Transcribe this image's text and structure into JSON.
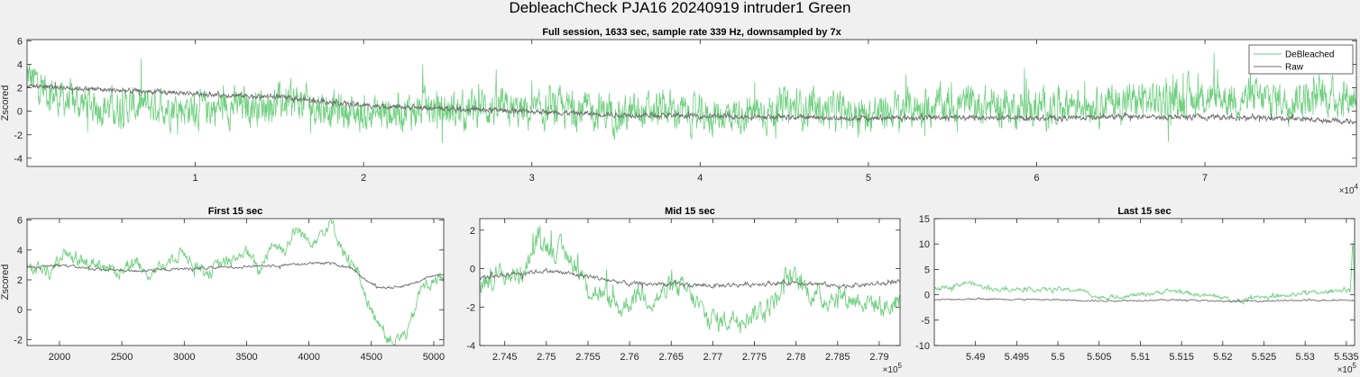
{
  "figure_title": "DebleachCheck PJA16 20240919  intruder1 Green",
  "colors": {
    "debleached": "#6fcf7f",
    "raw": "#6f6f6f",
    "axes_bg": "#ffffff",
    "figure_bg": "#f0f0f0"
  },
  "chart_data": [
    {
      "type": "line",
      "title": "Full session, 1633 sec, sample rate 339 Hz, downsampled by 7x",
      "ylabel": "Zscored",
      "xlabel": "",
      "xlim": [
        0,
        79000
      ],
      "ylim": [
        -4.7,
        6.1
      ],
      "xticks": [
        10000,
        20000,
        30000,
        40000,
        50000,
        60000,
        70000
      ],
      "xtick_labels": [
        "1",
        "2",
        "3",
        "4",
        "5",
        "6",
        "7"
      ],
      "xexponent": "×10",
      "xexponent_power": "4",
      "yticks": [
        -4,
        -2,
        0,
        2,
        4,
        6
      ],
      "ytick_labels": [
        "-4",
        "-2",
        "0",
        "2",
        "4",
        "6"
      ],
      "legend": {
        "placement": "top-right",
        "entries": [
          "DeBleached",
          "Raw"
        ]
      },
      "series": [
        {
          "name": "DeBleached",
          "x": [
            0,
            2000,
            5000,
            8000,
            10000,
            13000,
            16000,
            19000,
            20000,
            22000,
            24000,
            26000,
            27000,
            28000,
            30000,
            32000,
            34000,
            36000,
            38000,
            40000,
            42000,
            44000,
            46000,
            48000,
            50000,
            52000,
            54000,
            56000,
            58000,
            60000,
            62000,
            64000,
            66000,
            68000,
            70000,
            72000,
            74000,
            76000,
            79000
          ],
          "y": [
            3.0,
            1.0,
            0.3,
            0.5,
            0.2,
            0.5,
            0.8,
            0.0,
            -0.3,
            0.0,
            0.2,
            0.0,
            0.5,
            0.1,
            -0.2,
            0.2,
            0.0,
            -0.3,
            0.2,
            -0.5,
            -0.2,
            0.0,
            0.3,
            0.0,
            -0.3,
            0.2,
            0.5,
            0.6,
            0.4,
            0.2,
            0.8,
            0.7,
            0.9,
            1.0,
            1.2,
            1.1,
            1.0,
            1.2,
            1.2
          ],
          "noise": 1.5
        },
        {
          "name": "Raw",
          "x": [
            0,
            5000,
            10000,
            15000,
            20000,
            25000,
            30000,
            35000,
            40000,
            45000,
            50000,
            55000,
            60000,
            65000,
            70000,
            75000,
            79000
          ],
          "y": [
            2.2,
            1.8,
            1.5,
            1.2,
            0.5,
            0.2,
            0.0,
            -0.3,
            -0.4,
            -0.5,
            -0.6,
            -0.5,
            -0.6,
            -0.5,
            -0.5,
            -0.6,
            -0.9
          ],
          "noise": 0.2
        }
      ]
    },
    {
      "type": "line",
      "title": "First 15 sec",
      "ylabel": "Zscored",
      "xlabel": "",
      "xlim": [
        1740,
        5080
      ],
      "ylim": [
        -2.4,
        6.1
      ],
      "xticks": [
        2000,
        2500,
        3000,
        3500,
        4000,
        4500,
        5000
      ],
      "xtick_labels": [
        "2000",
        "2500",
        "3000",
        "3500",
        "4000",
        "4500",
        "5000"
      ],
      "xexponent": "",
      "xexponent_power": "",
      "yticks": [
        -2,
        0,
        2,
        4,
        6
      ],
      "ytick_labels": [
        "-2",
        "0",
        "2",
        "4",
        "6"
      ],
      "series": [
        {
          "name": "DeBleached",
          "x": [
            1740,
            1850,
            1950,
            2020,
            2100,
            2200,
            2300,
            2400,
            2500,
            2600,
            2700,
            2800,
            2900,
            3000,
            3100,
            3200,
            3300,
            3400,
            3500,
            3600,
            3700,
            3800,
            3900,
            4000,
            4100,
            4180,
            4250,
            4320,
            4400,
            4450,
            4500,
            4550,
            4620,
            4700,
            4800,
            4900,
            5000,
            5080
          ],
          "y": [
            2.6,
            2.8,
            2.4,
            3.8,
            3.3,
            3.1,
            3.2,
            2.6,
            2.6,
            3.2,
            2.3,
            2.9,
            3.2,
            3.9,
            3.0,
            2.5,
            3.1,
            3.4,
            3.9,
            2.5,
            4.5,
            4.0,
            5.4,
            4.6,
            5.2,
            5.8,
            4.5,
            3.2,
            2.5,
            1.0,
            -0.2,
            -0.5,
            -1.8,
            -2.1,
            -1.4,
            1.5,
            1.8,
            2.4
          ],
          "noise": 0.45
        },
        {
          "name": "Raw",
          "x": [
            1740,
            2000,
            2300,
            2600,
            2900,
            3200,
            3500,
            3800,
            4000,
            4200,
            4350,
            4450,
            4550,
            4700,
            4850,
            5000,
            5080
          ],
          "y": [
            2.8,
            3.0,
            2.7,
            2.6,
            2.7,
            2.8,
            2.9,
            3.0,
            3.1,
            3.1,
            2.7,
            2.0,
            1.5,
            1.5,
            1.8,
            2.3,
            2.4
          ],
          "noise": 0.09
        }
      ]
    },
    {
      "type": "line",
      "title": "Mid 15 sec",
      "ylabel": "",
      "xlabel": "",
      "xlim": [
        274200,
        279250
      ],
      "ylim": [
        -4.0,
        2.6
      ],
      "xticks": [
        274500,
        275000,
        275500,
        276000,
        276500,
        277000,
        277500,
        278000,
        278500,
        279000
      ],
      "xtick_labels": [
        "2.745",
        "2.75",
        "2.755",
        "2.76",
        "2.765",
        "2.77",
        "2.775",
        "2.78",
        "2.785",
        "2.79"
      ],
      "xexponent": "×10",
      "xexponent_power": "5",
      "yticks": [
        -4,
        -2,
        0,
        2
      ],
      "ytick_labels": [
        "-4",
        "-2",
        "0",
        "2"
      ],
      "series": [
        {
          "name": "DeBleached",
          "x": [
            274200,
            274400,
            274700,
            274900,
            275100,
            275300,
            275500,
            275700,
            275900,
            276100,
            276300,
            276500,
            276700,
            276900,
            277100,
            277300,
            277500,
            277700,
            277900,
            278100,
            278300,
            278500,
            278700,
            278900,
            279100,
            279250
          ],
          "y": [
            -0.8,
            -0.4,
            -0.3,
            1.6,
            1.0,
            0.6,
            -1.0,
            -1.5,
            -2.1,
            -1.2,
            -1.6,
            -1.0,
            -1.2,
            -2.4,
            -2.8,
            -2.4,
            -2.3,
            -1.9,
            -0.4,
            -1.0,
            -1.6,
            -1.4,
            -1.6,
            -1.7,
            -2.1,
            -1.5
          ],
          "noise": 0.6
        },
        {
          "name": "Raw",
          "x": [
            274200,
            274500,
            275000,
            275500,
            276000,
            276500,
            277000,
            277500,
            278000,
            278500,
            279000,
            279250
          ],
          "y": [
            -0.5,
            -0.3,
            -0.1,
            -0.4,
            -0.8,
            -0.8,
            -0.9,
            -0.8,
            -0.7,
            -0.9,
            -0.8,
            -0.7
          ],
          "noise": 0.12
        }
      ]
    },
    {
      "type": "line",
      "title": "Last 15 sec",
      "ylabel": "",
      "xlabel": "",
      "xlim": [
        548500,
        553600
      ],
      "ylim": [
        -10,
        15
      ],
      "xticks": [
        549000,
        549500,
        550000,
        550500,
        551000,
        551500,
        552000,
        552500,
        553000,
        553500
      ],
      "xtick_labels": [
        "5.49",
        "5.495",
        "5.5",
        "5.505",
        "5.51",
        "5.515",
        "5.52",
        "5.525",
        "5.53",
        "5.535"
      ],
      "xexponent": "×10",
      "xexponent_power": "5",
      "yticks": [
        -10,
        -5,
        0,
        5,
        10,
        15
      ],
      "ytick_labels": [
        "-10",
        "-5",
        "0",
        "5",
        "10",
        "15"
      ],
      "series": [
        {
          "name": "DeBleached",
          "x": [
            548500,
            548700,
            548900,
            549100,
            549300,
            549500,
            549700,
            550000,
            550300,
            550500,
            550800,
            551100,
            551400,
            551700,
            552000,
            552200,
            552400,
            552600,
            552800,
            553000,
            553200,
            553400,
            553550,
            553580,
            553600
          ],
          "y": [
            1.0,
            1.5,
            2.5,
            1.5,
            1.0,
            1.2,
            1.0,
            1.1,
            0.8,
            -0.6,
            -0.3,
            0.2,
            0.8,
            0.0,
            -0.5,
            -1.5,
            -0.2,
            -0.5,
            -0.2,
            0.5,
            0.3,
            1.0,
            0.8,
            12.0,
            1.0
          ],
          "noise": 0.4
        },
        {
          "name": "Raw",
          "x": [
            548500,
            549000,
            549500,
            550000,
            550500,
            551000,
            551500,
            552000,
            552500,
            553000,
            553600
          ],
          "y": [
            -1.0,
            -0.8,
            -0.9,
            -1.0,
            -1.2,
            -1.1,
            -1.0,
            -1.3,
            -1.2,
            -1.1,
            -1.0
          ],
          "noise": 0.15
        }
      ]
    }
  ]
}
